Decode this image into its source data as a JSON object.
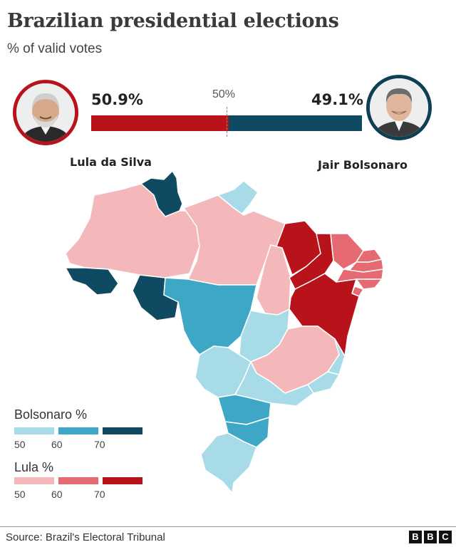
{
  "header": {
    "title": "Brazilian presidential elections",
    "subtitle": "% of valid votes"
  },
  "candidates": {
    "lula": {
      "name": "Lula da Silva",
      "pct_label": "50.9%",
      "pct": 50.9,
      "color": "#b8131b"
    },
    "bolsonaro": {
      "name": "Jair Bolsonaro",
      "pct_label": "49.1%",
      "pct": 49.1,
      "color": "#0f4a62"
    }
  },
  "midline_label": "50%",
  "legend": {
    "bolsonaro": {
      "title": "Bolsonaro %",
      "colors": [
        "#a7dbe8",
        "#3fa7c6",
        "#0f4a62"
      ],
      "ticks": [
        "50",
        "60",
        "70"
      ]
    },
    "lula": {
      "title": "Lula %",
      "colors": [
        "#f4b8bb",
        "#e66a72",
        "#b8131b"
      ],
      "ticks": [
        "50",
        "60",
        "70"
      ]
    }
  },
  "map_colors": {
    "lula_50": "#f4b8bb",
    "lula_60": "#e66a72",
    "lula_70": "#b8131b",
    "bolso_50": "#a7dbe8",
    "bolso_60": "#3fa7c6",
    "bolso_70": "#0f4a62"
  },
  "footer": {
    "source": "Source: Brazil's Electoral Tribunal",
    "logo": [
      "B",
      "B",
      "C"
    ]
  }
}
